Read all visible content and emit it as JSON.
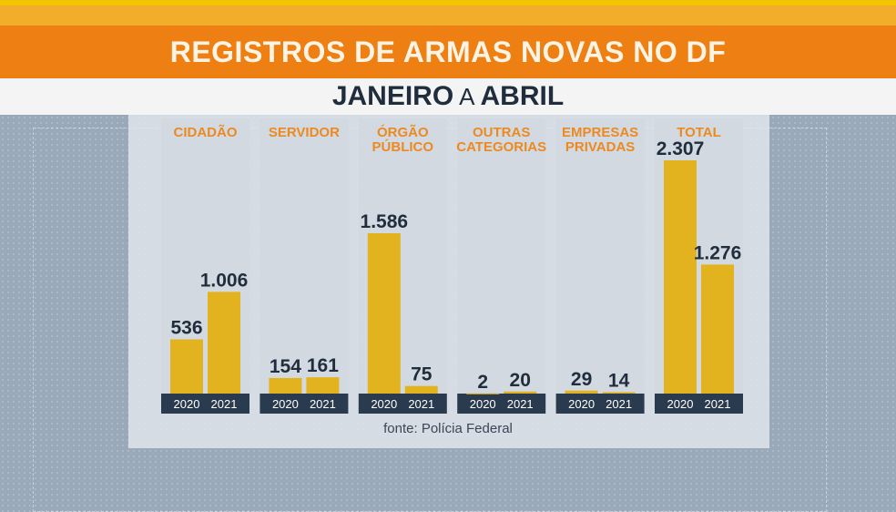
{
  "header": {
    "title": "REGISTROS DE ARMAS NOVAS NO DF",
    "subtitle_start": "JANEIRO",
    "subtitle_mid": "A",
    "subtitle_end": "ABRIL"
  },
  "chart_data": {
    "type": "bar",
    "title": "REGISTROS DE ARMAS NOVAS NO DF",
    "subtitle": "JANEIRO A ABRIL",
    "series_names": [
      "2020",
      "2021"
    ],
    "groups": [
      {
        "label": [
          "CIDADÃO"
        ],
        "values": [
          536,
          1006
        ],
        "labels": [
          "536",
          "1.006"
        ]
      },
      {
        "label": [
          "SERVIDOR"
        ],
        "values": [
          154,
          161
        ],
        "labels": [
          "154",
          "161"
        ]
      },
      {
        "label": [
          "ÓRGÃO",
          "PÚBLICO"
        ],
        "values": [
          1586,
          75
        ],
        "labels": [
          "1.586",
          "75"
        ]
      },
      {
        "label": [
          "OUTRAS",
          "CATEGORIAS"
        ],
        "values": [
          2,
          20
        ],
        "labels": [
          "2",
          "20"
        ]
      },
      {
        "label": [
          "EMPRESAS",
          "PRIVADAS"
        ],
        "values": [
          29,
          14
        ],
        "labels": [
          "29",
          "14"
        ]
      },
      {
        "label": [
          "TOTAL"
        ],
        "values": [
          2307,
          1276
        ],
        "labels": [
          "2.307",
          "1.276"
        ]
      }
    ],
    "ylim": [
      0,
      2307
    ],
    "source": "fonte: Polícia Federal"
  },
  "colors": {
    "bar": "#e2b21f",
    "group_label": "#eb8a22",
    "value_label": "#1f2d3d",
    "year_bar": "#2a3a4f",
    "year_text": "#ffffff",
    "column_bg": "#d3d9e0"
  }
}
